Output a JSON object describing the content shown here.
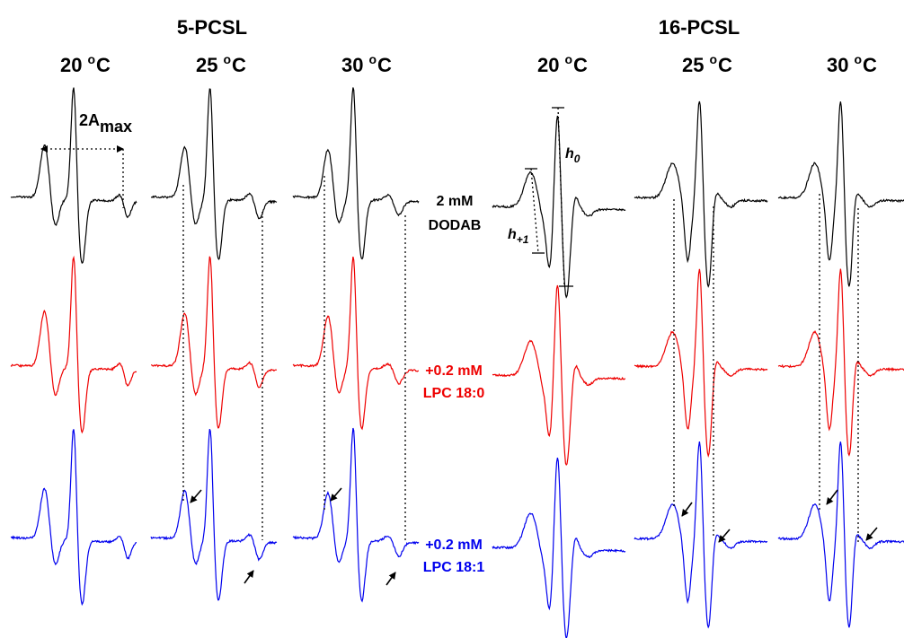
{
  "groups": [
    {
      "label": "5-PCSL",
      "temps": [
        "20",
        "25",
        "30"
      ]
    },
    {
      "label": "16-PCSL",
      "temps": [
        "20",
        "25",
        "30"
      ]
    }
  ],
  "temp_unit": "°C",
  "degree_mark": "o",
  "temp_unit_letter": "C",
  "conditions": [
    {
      "line1": "2 mM",
      "line2": "DODAB",
      "color": "#000000"
    },
    {
      "line1": "+0.2 mM",
      "line2": "LPC 18:0",
      "color": "#ee0000"
    },
    {
      "line1": "+0.2 mM",
      "line2": "LPC 18:1",
      "color": "#0000ee"
    }
  ],
  "annotations": {
    "amax_main": "2A",
    "amax_sub": "max",
    "h0_main": "h",
    "h0_sub": "0",
    "h1_main": "h",
    "h1_sub": "+1"
  }
}
